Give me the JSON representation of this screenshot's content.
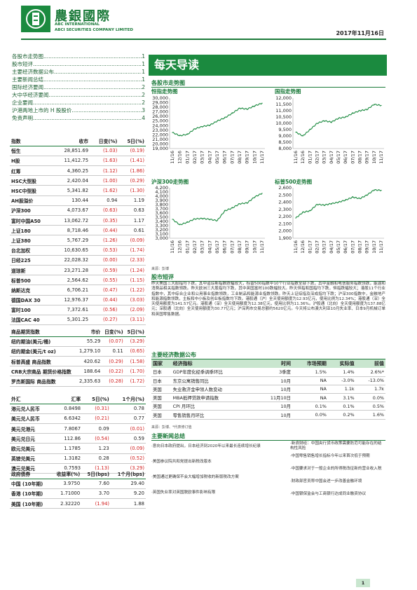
{
  "brand": {
    "name_cn": "農銀國際",
    "name_en1": "ABC INTERNATIONAL",
    "name_en2": "ABCI SECURITIES COMPANY LIMITED"
  },
  "date": "2017年11月16日",
  "toc": [
    {
      "label": "各股市走势图",
      "page": "1"
    },
    {
      "label": "股市短评",
      "page": "1"
    },
    {
      "label": "主要经济数据公布",
      "page": "1"
    },
    {
      "label": "主要新闻总结",
      "page": "1"
    },
    {
      "label": "国际经济要闻",
      "page": "2"
    },
    {
      "label": "大中华经济要闻",
      "page": "2"
    },
    {
      "label": "企业要闻",
      "page": "2"
    },
    {
      "label": "沪港两地上市的 H 股股价",
      "page": "3"
    },
    {
      "label": "免责声明",
      "page": "4"
    }
  ],
  "indices": {
    "headers": [
      "指数",
      "收市",
      "日变(%)",
      "5日(%)"
    ],
    "rows": [
      [
        "恒生",
        "28,851.69",
        "(1.03)",
        "(0.19)"
      ],
      [
        "H股",
        "11,412.75",
        "(1.63)",
        "(1.41)"
      ],
      [
        "红筹",
        "4,360.25",
        "(1.12)",
        "(1.86)"
      ],
      [
        "HSC大型股",
        "2,420.04",
        "(1.00)",
        "(0.29)"
      ],
      [
        "HSC中型股",
        "5,341.82",
        "(1.62)",
        "(1.30)"
      ],
      [
        "AH股溢价",
        "130.44",
        "0.94",
        "1.19"
      ],
      [
        "沪深300",
        "4,073.67",
        "(0.63)",
        "0.63"
      ],
      [
        "富时中国A50",
        "13,062.72",
        "(0.35)",
        "1.17"
      ],
      [
        "上证180",
        "8,718.46",
        "(0.44)",
        "0.61"
      ],
      [
        "上证380",
        "5,767.29",
        "(1.26)",
        "(0.09)"
      ],
      [
        "台北加权",
        "10,630.65",
        "(0.53)",
        "(1.74)"
      ],
      [
        "日经225",
        "22,028.32",
        "(0.00)",
        "(2.33)"
      ],
      [
        "道琼斯",
        "23,271.28",
        "(0.59)",
        "(1.24)"
      ],
      [
        "标普500",
        "2,564.62",
        "(0.55)",
        "(1.15)"
      ],
      [
        "纳斯达克",
        "6,706.21",
        "(0.47)",
        "(1.22)"
      ],
      [
        "德国DAX 30",
        "12,976.37",
        "(0.44)",
        "(3.03)"
      ],
      [
        "富时100",
        "7,372.61",
        "(0.56)",
        "(2.09)"
      ],
      [
        "法国CAC 40",
        "5,301.25",
        "(0.27)",
        "(3.11)"
      ]
    ]
  },
  "commodities": {
    "headers": [
      "商品期货指数",
      "市价",
      "日变(%)",
      "5日(%)"
    ],
    "rows": [
      [
        "纽约期油(美元/桶)",
        "55.29",
        "(0.07)",
        "(3.29)"
      ],
      [
        "纽约期金(美元/t oz)",
        "1,279.10",
        "0.11",
        "(0.65)"
      ],
      [
        "标普高盛 商品指数",
        "420.62",
        "(0.29)",
        "(1.58)"
      ],
      [
        "CRB大宗商品 期货价格指数",
        "188.64",
        "(0.22)",
        "(1.70)"
      ],
      [
        "罗杰斯国际 商品指数",
        "2,335.63",
        "(0.28)",
        "(1.72)"
      ]
    ]
  },
  "fx": {
    "headers": [
      "外汇",
      "汇率",
      "5日(%)",
      "1个月(%)"
    ],
    "rows": [
      [
        "港元兑人民币",
        "0.8498",
        "(0.31)",
        "0.78"
      ],
      [
        "美元兑人民币",
        "6.6342",
        "(0.21)",
        "0.77"
      ],
      [
        "美元兑港元",
        "7.8067",
        "0.09",
        "(0.01)"
      ],
      [
        "美元兑日元",
        "112.86",
        "(0.54)",
        "0.59"
      ],
      [
        "欧元兑美元",
        "1.1785",
        "1.23",
        "(0.09)"
      ],
      [
        "英镑兑美元",
        "1.3182",
        "0.28",
        "(0.52)"
      ],
      [
        "澳元兑美元",
        "0.7593",
        "(1.13)",
        "(3.29)"
      ]
    ]
  },
  "bonds": {
    "headers": [
      "政府债券",
      "收益率(%)",
      "5日(bps)",
      "1个月(bps)"
    ],
    "rows": [
      [
        "中国 (10年期)",
        "3.9750",
        "7.60",
        "29.40"
      ],
      [
        "香港 (10年期)",
        "1.71000",
        "3.70",
        "9.20"
      ],
      [
        "美国 (10年期)",
        "2.32220",
        "(1.94)",
        "1.88"
      ]
    ]
  },
  "banner": "每天导读",
  "charts_section_title": "各股市走势图",
  "charts_source": "来源：彭博",
  "chart_data": [
    {
      "type": "line",
      "title": "恒指走势图",
      "categories": [
        "11/16",
        "12/16",
        "01/17",
        "02/17",
        "03/17",
        "04/17",
        "05/17",
        "06/17",
        "07/17",
        "08/17",
        "09/17",
        "10/17",
        "11/17"
      ],
      "ylim": [
        19000,
        30000
      ],
      "yticks": [
        "30,000",
        "29,000",
        "28,000",
        "27,000",
        "26,000",
        "25,000",
        "24,000",
        "23,000",
        "22,000",
        "21,000",
        "20,000",
        "19,000"
      ],
      "values": [
        22500,
        21800,
        22100,
        23300,
        23800,
        24100,
        25000,
        25700,
        26700,
        27800,
        27600,
        28300,
        28900
      ]
    },
    {
      "type": "line",
      "title": "国指走势图",
      "categories": [
        "11/16",
        "12/16",
        "01/17",
        "02/17",
        "03/17",
        "04/17",
        "05/17",
        "06/17",
        "07/17",
        "08/17",
        "09/17",
        "10/17",
        "11/17"
      ],
      "ylim": [
        8000,
        12000
      ],
      "yticks": [
        "12,000",
        "11,500",
        "11,000",
        "10,500",
        "10,000",
        "9,500",
        "9,000",
        "8,500",
        "8,000"
      ],
      "values": [
        9300,
        9000,
        9500,
        10000,
        10200,
        10100,
        10400,
        10500,
        10800,
        11000,
        11100,
        11500,
        11420
      ]
    },
    {
      "type": "line",
      "title": "沪深300走势图",
      "categories": [
        "11/16",
        "12/16",
        "01/17",
        "02/17",
        "03/17",
        "04/17",
        "05/17",
        "06/17",
        "07/17",
        "08/17",
        "09/17",
        "10/17",
        "11/17"
      ],
      "ylim": [
        3000,
        4200
      ],
      "yticks": [
        "4,200",
        "4,100",
        "4,000",
        "3,900",
        "3,800",
        "3,700",
        "3,600",
        "3,500",
        "3,400",
        "3,300",
        "3,200",
        "3,100",
        "3,000"
      ],
      "values": [
        3450,
        3320,
        3380,
        3460,
        3470,
        3450,
        3420,
        3650,
        3720,
        3820,
        3840,
        3980,
        4070
      ]
    },
    {
      "type": "line",
      "title": "标普500走势图",
      "categories": [
        "11/16",
        "12/16",
        "01/17",
        "02/17",
        "03/17",
        "04/17",
        "05/17",
        "06/17",
        "07/17",
        "08/17",
        "09/17",
        "10/17",
        "11/17"
      ],
      "ylim": [
        1900,
        2600
      ],
      "yticks": [
        "2,600",
        "2,500",
        "2,400",
        "2,300",
        "2,200",
        "2,100",
        "2,000",
        "1,900"
      ],
      "values": [
        2180,
        2260,
        2280,
        2370,
        2360,
        2380,
        2400,
        2430,
        2470,
        2450,
        2500,
        2570,
        2565
      ]
    }
  ],
  "commentary": {
    "title": "股市短评",
    "text": "昨天美国三大股指均下跌，其中道琼斯指数跌幅较大，标普500指数中10个行业指数全部下跌，其中金融和电信服务指数领跌，能源和消费品相关指数领跌。昨天欧洲三大股指均下跌，其中英国富时100跌幅较大。昨天恒指和国指均下跌，恒指跌幅较大；港股11个行业指数中，其中综合企业和公用事业指数领跌，工业制品和能源业指数领跌。昨天上证综指及深成指均下跌；沪深300指数中，金融地产和能源指数领跌，主板和中小板及创业板指数均下跌。港股通（沪）全天使用额度为12.93亿元，使用比例为12.34%；港股通（深）全天使用额度为141.57亿元。港股通（深）全天使用额度为12.38亿元，使用比例为11.36%。沪股通（北向）全天使用额度为137.88亿元；深股通（北向）全天使用额度为30.77亿元；沪深两市交易总额约5620亿元。今天将公布澳大利亚10月失业率、日本9月机械订单和英国零售数据。"
  },
  "econ": {
    "title": "主要经济数据公布",
    "headers": [
      "国家",
      "经济指标",
      "时间",
      "市场预期",
      "实际值",
      "前值"
    ],
    "rows": [
      [
        "日本",
        "GDP年度化经季调季环比",
        "3季度",
        "1.5%",
        "1.4%",
        "2.6%*"
      ],
      [
        "日本",
        "东京公寓销售同比",
        "10月",
        "NA",
        "-3.0%",
        "-13.0%"
      ],
      [
        "美国",
        "失业救济金申领人数变动",
        "10月",
        "NA",
        "1.1k",
        "1.7k"
      ],
      [
        "美国",
        "MBA抵押贷款申请指数",
        "11月10日",
        "NA",
        "3.1%",
        "0.0%"
      ],
      [
        "美国",
        "CPI 月环比",
        "10月",
        "0.1%",
        "0.1%",
        "0.5%"
      ],
      [
        "美国",
        "零售销售月环比",
        "10月",
        "0.0%",
        "0.2%",
        "1.6%"
      ]
    ],
    "note": "来源：彭博、*代表修订值"
  },
  "news": {
    "title": "主要新闻总结",
    "left": [
      "·意向日本政府提出，日本经济到2020年以来最长连续增长纪录",
      "·美国参议院共和党提出新税改版本",
      "·美国通过更确保不会大幅增加税收的新版税改方案",
      "·英国失业率对英国脱欧事件影响有限"
    ],
    "right": [
      "·新浪财经：中国央行货币政策需要防范可能存在的结构性风险",
      "·中国零售销售增长指标今年以来首次低于预期",
      "·中国要求对于一般企业的所得税改征新的营业收入税",
      "·财政部官员称中国会进一步改善金融环境",
      "·中国银保监会与工商银行达成同业融资协议"
    ]
  },
  "page": "1"
}
